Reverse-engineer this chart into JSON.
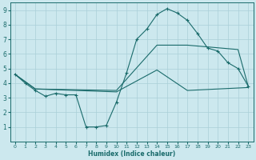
{
  "xlabel": "Humidex (Indice chaleur)",
  "ylabel": "",
  "bg_color": "#cce8ee",
  "grid_color": "#aacfd8",
  "line_color": "#1a6b6b",
  "xlim": [
    -0.5,
    23.5
  ],
  "ylim": [
    0,
    9.5
  ],
  "xticks": [
    0,
    1,
    2,
    3,
    4,
    5,
    6,
    7,
    8,
    9,
    10,
    11,
    12,
    13,
    14,
    15,
    16,
    17,
    18,
    19,
    20,
    21,
    22,
    23
  ],
  "yticks": [
    1,
    2,
    3,
    4,
    5,
    6,
    7,
    8,
    9
  ],
  "line1_x": [
    0,
    1,
    2,
    3,
    4,
    5,
    6,
    7,
    8,
    9,
    10,
    11,
    12,
    13,
    14,
    15,
    16,
    17,
    18,
    19,
    20,
    21,
    22,
    23
  ],
  "line1_y": [
    4.6,
    4.0,
    3.5,
    3.1,
    3.3,
    3.2,
    3.2,
    1.0,
    1.0,
    1.1,
    2.7,
    4.7,
    7.0,
    7.7,
    8.7,
    9.1,
    8.8,
    8.3,
    7.4,
    6.4,
    6.2,
    5.4,
    5.0,
    3.8
  ],
  "line2_x": [
    0,
    2,
    10,
    14,
    17,
    22,
    23
  ],
  "line2_y": [
    4.6,
    3.6,
    3.5,
    6.6,
    6.6,
    6.3,
    3.8
  ],
  "line3_x": [
    0,
    2,
    10,
    14,
    17,
    23
  ],
  "line3_y": [
    4.6,
    3.6,
    3.4,
    4.9,
    3.5,
    3.7
  ]
}
